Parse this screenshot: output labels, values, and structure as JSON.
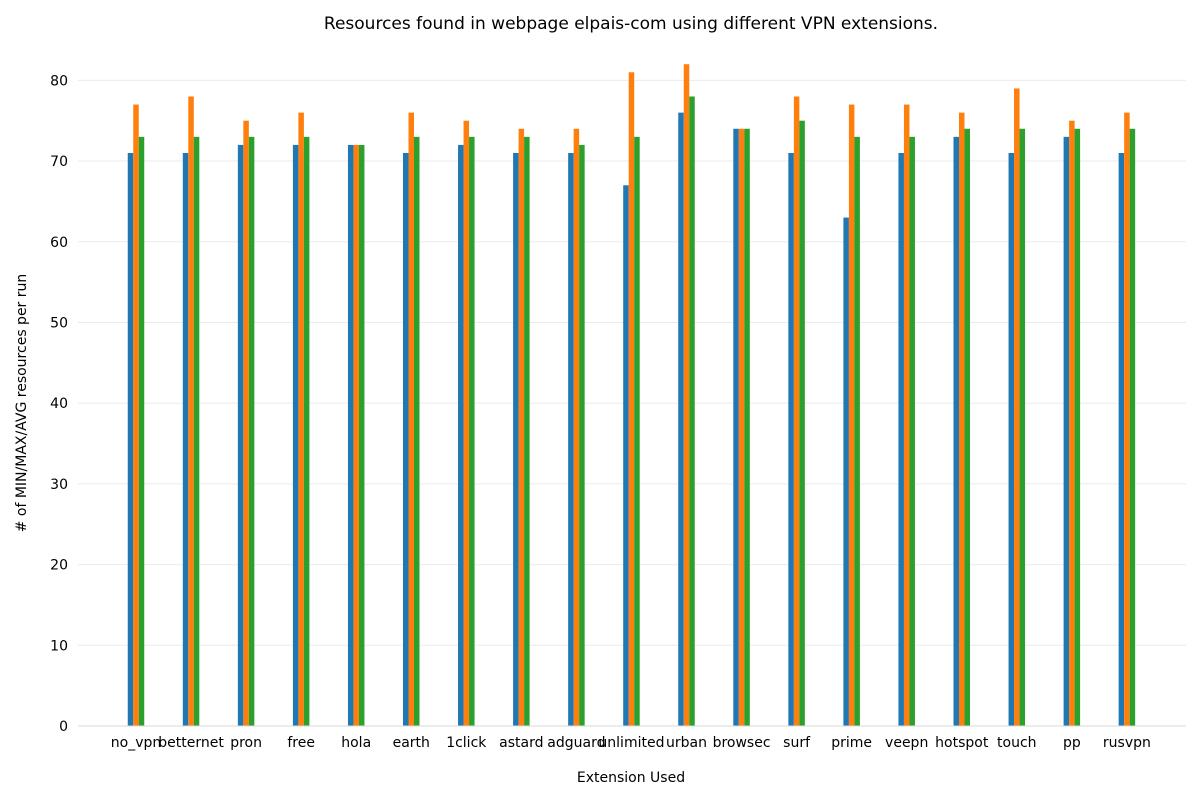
{
  "chart_data": {
    "type": "bar",
    "title": "Resources found in webpage elpais-com using different VPN extensions.",
    "xlabel": "Extension Used",
    "ylabel": "# of MIN/MAX/AVG resources per run",
    "ylim": [
      0,
      85
    ],
    "yticks": [
      0,
      10,
      20,
      30,
      40,
      50,
      60,
      70,
      80
    ],
    "grid": "horizontal",
    "categories": [
      "no_vpn",
      "betternet",
      "pron",
      "free",
      "hola",
      "earth",
      "1click",
      "astard",
      "adguard",
      "unlimited",
      "urban",
      "browsec",
      "surf",
      "prime",
      "veepn",
      "hotspot",
      "touch",
      "pp",
      "rusvpn"
    ],
    "series": [
      {
        "color": "#1f77b4",
        "values": [
          71,
          71,
          72,
          72,
          72,
          71,
          72,
          71,
          71,
          67,
          76,
          74,
          71,
          63,
          71,
          73,
          71,
          73,
          71
        ]
      },
      {
        "color": "#ff7f0e",
        "values": [
          77,
          78,
          75,
          76,
          72,
          76,
          75,
          74,
          74,
          81,
          82,
          74,
          78,
          77,
          77,
          76,
          79,
          75,
          76
        ]
      },
      {
        "color": "#2ca02c",
        "values": [
          73,
          73,
          73,
          73,
          72,
          73,
          73,
          73,
          72,
          73,
          78,
          74,
          75,
          73,
          73,
          74,
          74,
          74,
          74
        ]
      }
    ]
  }
}
